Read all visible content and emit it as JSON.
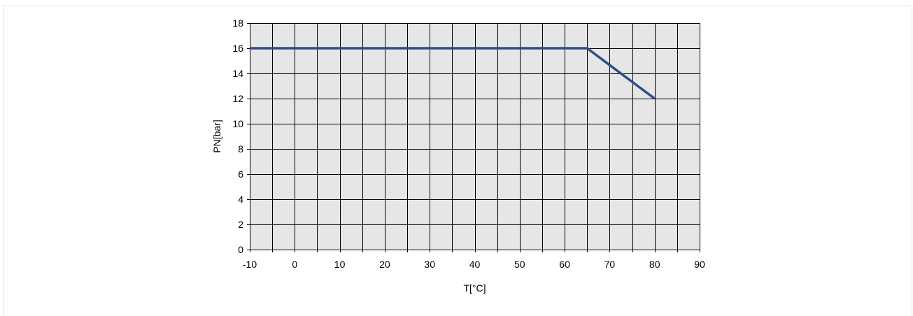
{
  "chart_data": {
    "type": "line",
    "title": "",
    "xlabel": "T[°C]",
    "ylabel": "PN[bar]",
    "xlim": [
      -10,
      90
    ],
    "ylim": [
      0,
      18
    ],
    "x_ticks": [
      -10,
      0,
      10,
      20,
      30,
      40,
      50,
      60,
      70,
      80,
      90
    ],
    "y_ticks": [
      0,
      2,
      4,
      6,
      8,
      10,
      12,
      14,
      16,
      18
    ],
    "grid": true,
    "grid_x_step": 5,
    "grid_y_step": 2,
    "plot_background": "#e6e6e6",
    "grid_color": "#000000",
    "series": [
      {
        "color": "#2e4d87",
        "x": [
          -10,
          65,
          80
        ],
        "y": [
          16,
          16,
          12
        ]
      }
    ]
  }
}
